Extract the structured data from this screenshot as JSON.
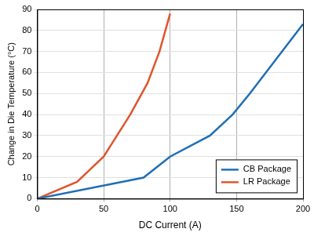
{
  "chart_data": {
    "type": "line",
    "x_label": "DC Current (A)",
    "y_label": "Change in Die Temperature (°C)",
    "series": [
      {
        "name": "CB Package",
        "color": "#1f6fb5",
        "x": [
          0,
          80,
          100,
          130,
          147,
          160,
          200
        ],
        "values": [
          0,
          10,
          20,
          30,
          40,
          50,
          83
        ]
      },
      {
        "name": "LR Package",
        "color": "#e0552d",
        "x": [
          0,
          30,
          50,
          70,
          83,
          92,
          100
        ],
        "values": [
          0,
          8,
          20,
          40,
          55,
          70,
          88
        ]
      }
    ],
    "xlim": [
      0,
      200
    ],
    "xticks": [
      0,
      50,
      100,
      150,
      200
    ],
    "ylim": [
      0,
      90
    ],
    "yticks": [
      0,
      10,
      20,
      30,
      40,
      50,
      60,
      70,
      80,
      90
    ],
    "grid": true,
    "legend": "lower right"
  }
}
